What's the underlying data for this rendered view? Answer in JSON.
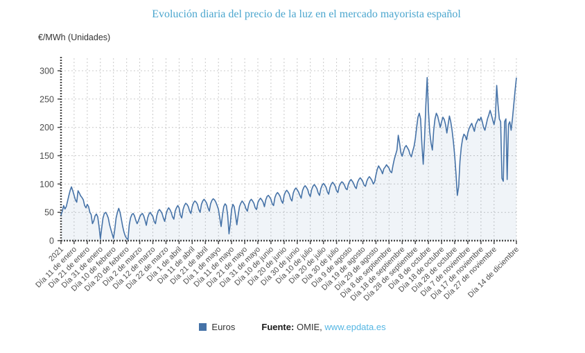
{
  "title": "Evolución diaria del precio de la luz en el mercado mayorista español",
  "y_axis_unit": "€/MWh (Unidades)",
  "legend": {
    "series_label": "Euros",
    "source_label": "Fuente:",
    "source_name": "OMIE,",
    "source_link": "www.epdata.es"
  },
  "colors": {
    "line_blue": "#4572a7",
    "area_fill": "rgba(69,114,167,0.08)",
    "title_blue": "#4ba6ce",
    "link_blue": "#55b6e3",
    "grid": "#c9c9c9",
    "axis": "#4a4a4a",
    "tick_label": "#4d4d4d"
  },
  "chart_data": {
    "type": "line",
    "title": "Evolución diaria del precio de la luz en el mercado mayorista español",
    "xlabel": "",
    "ylabel": "€/MWh (Unidades)",
    "ylim": [
      0,
      300
    ],
    "grid": true,
    "legend_position": "bottom",
    "start_date": "2021-01-01",
    "end_date": "2021-12-14",
    "total_days": 347,
    "y_ticks": [
      0,
      50,
      100,
      150,
      200,
      250,
      300
    ],
    "x_tick_days": [
      0,
      10,
      20,
      30,
      40,
      50,
      60,
      70,
      80,
      90,
      100,
      110,
      120,
      130,
      140,
      150,
      160,
      170,
      180,
      190,
      200,
      210,
      220,
      230,
      240,
      250,
      260,
      270,
      280,
      290,
      300,
      310,
      320,
      330,
      347
    ],
    "x_tick_labels": [
      "2021",
      "Día 11 de enero",
      "Día 21 de enero",
      "Día 31 de enero",
      "Día 10 de febrero",
      "Día 20 de febrero",
      "Día 2 de marzo",
      "Día 12 de marzo",
      "Día 22 de marzo",
      "Día 1 de abril",
      "Día 11 de abril",
      "Día 21 de abril",
      "Día 1 de mayo",
      "Día 11 de mayo",
      "Día 21 de mayo",
      "Día 31 de mayo",
      "Día 10 de junio",
      "Día 20 de junio",
      "Día 30 de junio",
      "Día 10 de julio",
      "Día 20 de julio",
      "Día 30 de julio",
      "Día 9 de agosto",
      "Día 19 de agosto",
      "Día 29 de agosto",
      "Día 8 de septiembre",
      "Día 18 de septiembre",
      "Día 28 de septiembre",
      "Día 8 de octubre",
      "Día 18 de octubre",
      "Día 28 de octubre",
      "Día 7 de noviembre",
      "Día 17 de noviembre",
      "Día 27 de noviembre",
      "Día 14 de diciembre"
    ],
    "series": [
      {
        "name": "Euros",
        "color": "#4572a7",
        "values": [
          45,
          52,
          62,
          56,
          60,
          70,
          80,
          89,
          95,
          88,
          80,
          72,
          68,
          88,
          84,
          79,
          76,
          72,
          62,
          58,
          64,
          60,
          50,
          46,
          30,
          35,
          44,
          47,
          42,
          25,
          3,
          22,
          40,
          48,
          50,
          46,
          40,
          28,
          20,
          12,
          4,
          20,
          40,
          50,
          57,
          50,
          38,
          25,
          15,
          8,
          4,
          2,
          28,
          40,
          46,
          48,
          44,
          36,
          30,
          35,
          42,
          46,
          48,
          44,
          36,
          27,
          40,
          47,
          50,
          46,
          43,
          34,
          30,
          44,
          52,
          55,
          52,
          48,
          40,
          34,
          46,
          54,
          58,
          55,
          50,
          42,
          38,
          52,
          58,
          62,
          58,
          45,
          40,
          55,
          62,
          66,
          64,
          60,
          52,
          48,
          60,
          67,
          70,
          68,
          64,
          55,
          50,
          64,
          70,
          73,
          70,
          66,
          58,
          52,
          65,
          71,
          74,
          72,
          68,
          62,
          55,
          40,
          25,
          45,
          60,
          65,
          62,
          45,
          12,
          30,
          55,
          64,
          60,
          45,
          28,
          45,
          60,
          66,
          70,
          67,
          63,
          56,
          52,
          64,
          70,
          73,
          70,
          66,
          58,
          55,
          67,
          72,
          75,
          72,
          68,
          60,
          72,
          78,
          80,
          77,
          73,
          65,
          62,
          76,
          82,
          85,
          82,
          78,
          70,
          66,
          80,
          86,
          89,
          86,
          82,
          74,
          70,
          84,
          90,
          93,
          90,
          86,
          80,
          75,
          88,
          94,
          97,
          94,
          90,
          82,
          78,
          90,
          96,
          99,
          96,
          92,
          84,
          80,
          92,
          98,
          101,
          98,
          94,
          86,
          82,
          94,
          100,
          103,
          100,
          96,
          88,
          85,
          96,
          101,
          104,
          102,
          98,
          92,
          90,
          100,
          105,
          108,
          105,
          101,
          95,
          92,
          103,
          108,
          111,
          108,
          104,
          98,
          96,
          105,
          110,
          113,
          110,
          106,
          100,
          104,
          116,
          126,
          132,
          128,
          124,
          118,
          127,
          130,
          134,
          131,
          128,
          122,
          120,
          133,
          144,
          152,
          160,
          186,
          172,
          155,
          149,
          158,
          165,
          168,
          164,
          160,
          152,
          148,
          158,
          166,
          180,
          200,
          218,
          225,
          215,
          170,
          135,
          180,
          240,
          288,
          230,
          192,
          172,
          160,
          195,
          215,
          225,
          220,
          210,
          200,
          210,
          218,
          214,
          205,
          190,
          205,
          220,
          210,
          195,
          175,
          150,
          118,
          80,
          95,
          140,
          165,
          180,
          188,
          185,
          178,
          190,
          198,
          203,
          207,
          200,
          193,
          205,
          210,
          215,
          212,
          218,
          210,
          200,
          195,
          205,
          215,
          222,
          230,
          222,
          213,
          205,
          218,
          274,
          240,
          215,
          210,
          110,
          105,
          210,
          215,
          108,
          205,
          210,
          195,
          215,
          240,
          265,
          287
        ]
      }
    ]
  }
}
